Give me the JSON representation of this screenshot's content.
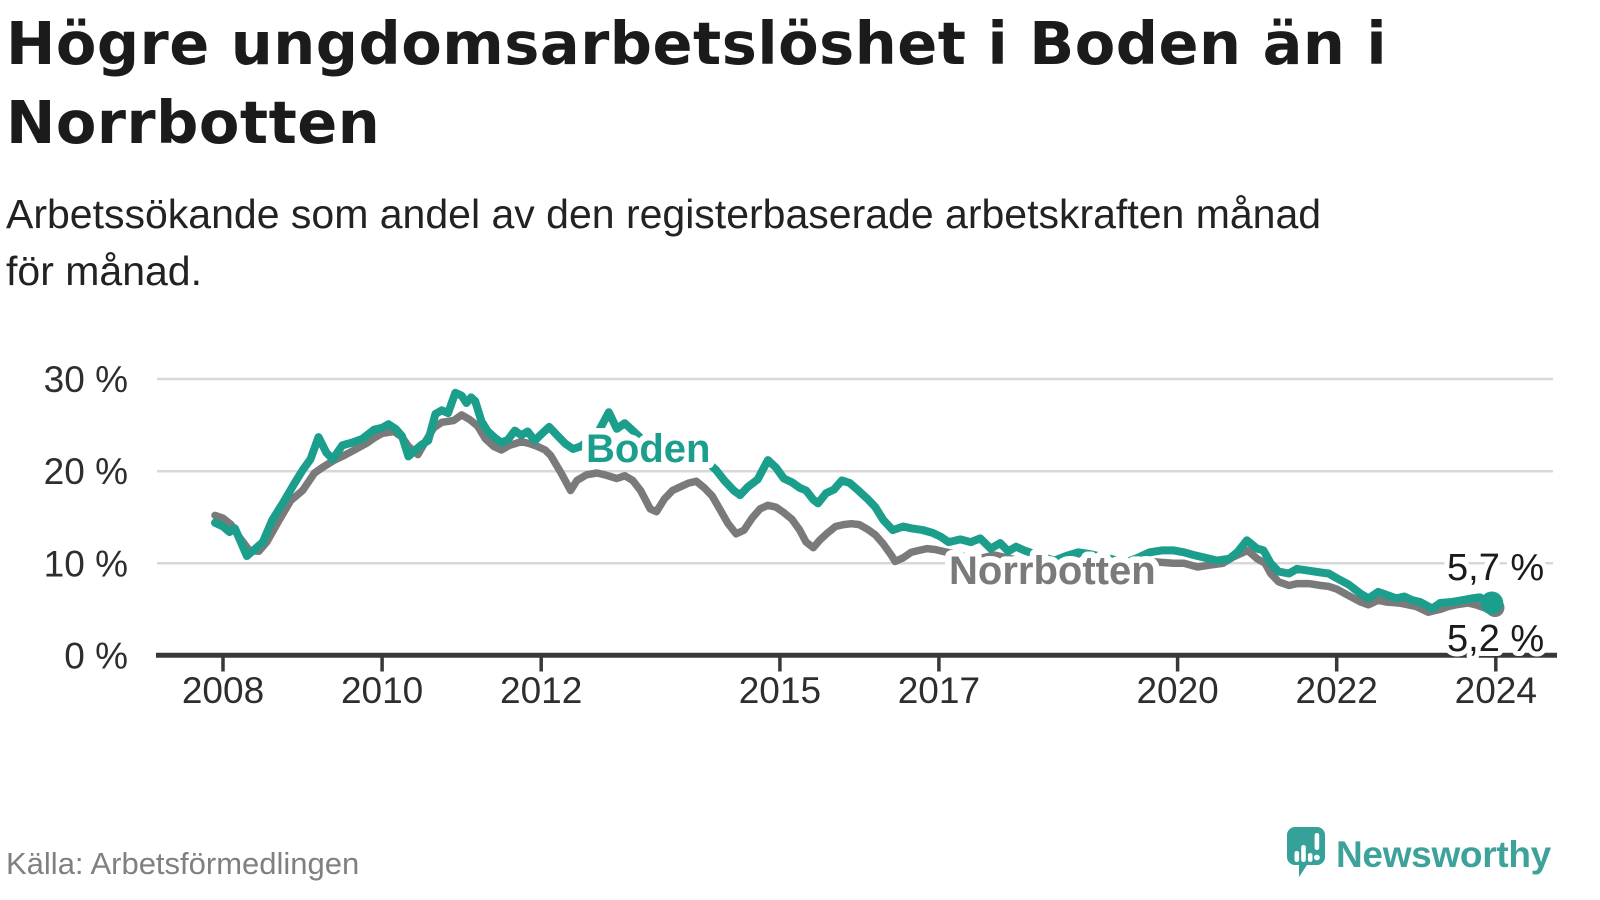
{
  "header": {
    "title_line1": "Högre ungdomsarbetslöshet i Boden än i",
    "title_line2": "Norrbotten",
    "subtitle_line1": "Arbetssökande som andel av den registerbaserade arbetskraften månad",
    "subtitle_line2": "för månad."
  },
  "footer": {
    "source": "Källa: Arbetsförmedlingen",
    "brand": "Newsworthy"
  },
  "chart_data": {
    "type": "line",
    "title": "",
    "xlabel": "",
    "ylabel": "Arbetssökande som andel av den registerbaserade arbetskraften",
    "unit": "%",
    "xlim": [
      2007.9,
      2024.4
    ],
    "ylim": [
      0,
      31
    ],
    "grid": "horizontal",
    "grid_color": "#d8d8d8",
    "axis_color": "#383838",
    "x_ticks": [
      {
        "value": 2008,
        "label": "2008"
      },
      {
        "value": 2010,
        "label": "2010"
      },
      {
        "value": 2012,
        "label": "2012"
      },
      {
        "value": 2015,
        "label": "2015"
      },
      {
        "value": 2017,
        "label": "2017"
      },
      {
        "value": 2020,
        "label": "2020"
      },
      {
        "value": 2022,
        "label": "2022"
      },
      {
        "value": 2024,
        "label": "2024"
      }
    ],
    "y_ticks": [
      {
        "value": 30,
        "label": "30 %"
      },
      {
        "value": 20,
        "label": "20 %"
      },
      {
        "value": 10,
        "label": "10 %"
      },
      {
        "value": 0,
        "label": "0 %"
      }
    ],
    "series": [
      {
        "name": "Boden",
        "color": "#1b9e8c",
        "end_label": "5,7 %",
        "last_value": 5.7,
        "points": [
          [
            2007.9,
            14.4
          ],
          [
            2008.0,
            14.0
          ],
          [
            2008.08,
            13.4
          ],
          [
            2008.15,
            13.8
          ],
          [
            2008.3,
            10.8
          ],
          [
            2008.42,
            11.7
          ],
          [
            2008.5,
            12.3
          ],
          [
            2008.62,
            14.7
          ],
          [
            2008.75,
            16.5
          ],
          [
            2008.9,
            18.7
          ],
          [
            2009.0,
            20.1
          ],
          [
            2009.1,
            21.3
          ],
          [
            2009.2,
            23.7
          ],
          [
            2009.3,
            22.0
          ],
          [
            2009.38,
            21.3
          ],
          [
            2009.5,
            22.8
          ],
          [
            2009.62,
            23.1
          ],
          [
            2009.75,
            23.5
          ],
          [
            2009.9,
            24.5
          ],
          [
            2010.0,
            24.7
          ],
          [
            2010.08,
            25.1
          ],
          [
            2010.17,
            24.6
          ],
          [
            2010.25,
            23.8
          ],
          [
            2010.33,
            21.6
          ],
          [
            2010.42,
            22.3
          ],
          [
            2010.5,
            22.9
          ],
          [
            2010.58,
            23.3
          ],
          [
            2010.67,
            26.2
          ],
          [
            2010.75,
            26.6
          ],
          [
            2010.83,
            26.3
          ],
          [
            2010.92,
            28.5
          ],
          [
            2011.0,
            28.2
          ],
          [
            2011.06,
            27.4
          ],
          [
            2011.12,
            28.0
          ],
          [
            2011.17,
            27.6
          ],
          [
            2011.25,
            25.4
          ],
          [
            2011.33,
            24.3
          ],
          [
            2011.42,
            23.6
          ],
          [
            2011.5,
            23.1
          ],
          [
            2011.58,
            23.4
          ],
          [
            2011.67,
            24.4
          ],
          [
            2011.75,
            23.9
          ],
          [
            2011.83,
            24.3
          ],
          [
            2011.92,
            23.3
          ],
          [
            2012.0,
            24.0
          ],
          [
            2012.1,
            24.8
          ],
          [
            2012.2,
            23.9
          ],
          [
            2012.3,
            23.0
          ],
          [
            2012.4,
            22.4
          ],
          [
            2012.5,
            22.7
          ],
          [
            2012.62,
            23.5
          ],
          [
            2012.72,
            24.3
          ],
          [
            2012.85,
            26.4
          ],
          [
            2012.95,
            24.6
          ],
          [
            2013.05,
            25.2
          ],
          [
            2013.15,
            24.4
          ],
          [
            2013.3,
            23.2
          ],
          [
            2013.45,
            21.9
          ],
          [
            2013.6,
            22.4
          ],
          [
            2013.75,
            22.9
          ],
          [
            2013.9,
            23.1
          ],
          [
            2014.0,
            22.2
          ],
          [
            2014.1,
            20.9
          ],
          [
            2014.2,
            20.1
          ],
          [
            2014.3,
            19.0
          ],
          [
            2014.42,
            17.9
          ],
          [
            2014.5,
            17.4
          ],
          [
            2014.6,
            18.3
          ],
          [
            2014.72,
            19.1
          ],
          [
            2014.85,
            21.2
          ],
          [
            2014.95,
            20.4
          ],
          [
            2015.05,
            19.2
          ],
          [
            2015.15,
            18.8
          ],
          [
            2015.25,
            18.2
          ],
          [
            2015.33,
            17.9
          ],
          [
            2015.42,
            16.9
          ],
          [
            2015.48,
            16.5
          ],
          [
            2015.58,
            17.6
          ],
          [
            2015.68,
            18.0
          ],
          [
            2015.78,
            19.0
          ],
          [
            2015.88,
            18.7
          ],
          [
            2016.0,
            17.8
          ],
          [
            2016.1,
            17.0
          ],
          [
            2016.2,
            16.1
          ],
          [
            2016.3,
            14.7
          ],
          [
            2016.42,
            13.6
          ],
          [
            2016.55,
            14.0
          ],
          [
            2016.65,
            13.8
          ],
          [
            2016.8,
            13.6
          ],
          [
            2016.92,
            13.3
          ],
          [
            2017.02,
            12.9
          ],
          [
            2017.12,
            12.3
          ],
          [
            2017.27,
            12.6
          ],
          [
            2017.4,
            12.3
          ],
          [
            2017.52,
            12.7
          ],
          [
            2017.65,
            11.6
          ],
          [
            2017.77,
            12.2
          ],
          [
            2017.87,
            11.3
          ],
          [
            2017.97,
            11.8
          ],
          [
            2018.07,
            11.4
          ],
          [
            2018.17,
            11.1
          ],
          [
            2018.3,
            10.7
          ],
          [
            2018.45,
            10.3
          ],
          [
            2018.6,
            10.8
          ],
          [
            2018.75,
            11.2
          ],
          [
            2018.9,
            11.0
          ],
          [
            2019.05,
            10.7
          ],
          [
            2019.2,
            10.4
          ],
          [
            2019.35,
            10.1
          ],
          [
            2019.5,
            10.6
          ],
          [
            2019.65,
            11.2
          ],
          [
            2019.8,
            11.4
          ],
          [
            2019.95,
            11.4
          ],
          [
            2020.08,
            11.2
          ],
          [
            2020.2,
            10.9
          ],
          [
            2020.35,
            10.6
          ],
          [
            2020.5,
            10.3
          ],
          [
            2020.65,
            10.5
          ],
          [
            2020.75,
            11.2
          ],
          [
            2020.87,
            12.5
          ],
          [
            2021.0,
            11.6
          ],
          [
            2021.08,
            11.4
          ],
          [
            2021.17,
            10.0
          ],
          [
            2021.27,
            9.1
          ],
          [
            2021.4,
            8.9
          ],
          [
            2021.5,
            9.4
          ],
          [
            2021.65,
            9.2
          ],
          [
            2021.8,
            9.0
          ],
          [
            2021.9,
            8.9
          ],
          [
            2022.0,
            8.4
          ],
          [
            2022.15,
            7.7
          ],
          [
            2022.3,
            6.7
          ],
          [
            2022.4,
            6.2
          ],
          [
            2022.52,
            6.9
          ],
          [
            2022.62,
            6.6
          ],
          [
            2022.75,
            6.2
          ],
          [
            2022.85,
            6.4
          ],
          [
            2022.95,
            6.0
          ],
          [
            2023.05,
            5.8
          ],
          [
            2023.2,
            5.1
          ],
          [
            2023.3,
            5.7
          ],
          [
            2023.45,
            5.8
          ],
          [
            2023.58,
            6.0
          ],
          [
            2023.7,
            6.2
          ],
          [
            2023.8,
            6.3
          ],
          [
            2023.88,
            5.9
          ],
          [
            2023.95,
            5.7
          ]
        ]
      },
      {
        "name": "Norrbotten",
        "color": "#7a7a7a",
        "end_label": "5,2 %",
        "last_value": 5.2,
        "points": [
          [
            2007.9,
            15.2
          ],
          [
            2008.0,
            14.9
          ],
          [
            2008.1,
            14.2
          ],
          [
            2008.2,
            12.9
          ],
          [
            2008.33,
            11.4
          ],
          [
            2008.45,
            11.3
          ],
          [
            2008.55,
            12.3
          ],
          [
            2008.7,
            14.6
          ],
          [
            2008.85,
            16.8
          ],
          [
            2009.0,
            17.9
          ],
          [
            2009.15,
            19.8
          ],
          [
            2009.25,
            20.4
          ],
          [
            2009.4,
            21.2
          ],
          [
            2009.5,
            21.6
          ],
          [
            2009.65,
            22.3
          ],
          [
            2009.8,
            23.0
          ],
          [
            2009.9,
            23.6
          ],
          [
            2010.0,
            24.1
          ],
          [
            2010.15,
            24.3
          ],
          [
            2010.25,
            23.7
          ],
          [
            2010.33,
            22.7
          ],
          [
            2010.45,
            21.8
          ],
          [
            2010.55,
            23.3
          ],
          [
            2010.65,
            24.7
          ],
          [
            2010.75,
            25.3
          ],
          [
            2010.9,
            25.5
          ],
          [
            2011.0,
            26.1
          ],
          [
            2011.1,
            25.6
          ],
          [
            2011.2,
            24.9
          ],
          [
            2011.3,
            23.5
          ],
          [
            2011.4,
            22.7
          ],
          [
            2011.5,
            22.3
          ],
          [
            2011.6,
            22.8
          ],
          [
            2011.75,
            23.2
          ],
          [
            2011.85,
            23.0
          ],
          [
            2011.95,
            22.7
          ],
          [
            2012.05,
            22.3
          ],
          [
            2012.12,
            21.7
          ],
          [
            2012.25,
            19.8
          ],
          [
            2012.37,
            17.9
          ],
          [
            2012.45,
            19.0
          ],
          [
            2012.57,
            19.6
          ],
          [
            2012.7,
            19.8
          ],
          [
            2012.8,
            19.6
          ],
          [
            2012.95,
            19.2
          ],
          [
            2013.05,
            19.5
          ],
          [
            2013.15,
            19.0
          ],
          [
            2013.25,
            17.9
          ],
          [
            2013.37,
            15.9
          ],
          [
            2013.45,
            15.6
          ],
          [
            2013.55,
            17.0
          ],
          [
            2013.65,
            17.9
          ],
          [
            2013.75,
            18.3
          ],
          [
            2013.85,
            18.7
          ],
          [
            2013.95,
            18.9
          ],
          [
            2014.05,
            18.2
          ],
          [
            2014.15,
            17.3
          ],
          [
            2014.25,
            15.8
          ],
          [
            2014.35,
            14.3
          ],
          [
            2014.45,
            13.2
          ],
          [
            2014.55,
            13.6
          ],
          [
            2014.65,
            14.9
          ],
          [
            2014.75,
            15.9
          ],
          [
            2014.85,
            16.3
          ],
          [
            2014.95,
            16.1
          ],
          [
            2015.05,
            15.5
          ],
          [
            2015.15,
            14.8
          ],
          [
            2015.25,
            13.6
          ],
          [
            2015.33,
            12.3
          ],
          [
            2015.42,
            11.7
          ],
          [
            2015.5,
            12.5
          ],
          [
            2015.6,
            13.3
          ],
          [
            2015.7,
            14.0
          ],
          [
            2015.8,
            14.2
          ],
          [
            2015.9,
            14.3
          ],
          [
            2016.0,
            14.2
          ],
          [
            2016.1,
            13.7
          ],
          [
            2016.2,
            13.1
          ],
          [
            2016.3,
            12.1
          ],
          [
            2016.4,
            10.9
          ],
          [
            2016.45,
            10.2
          ],
          [
            2016.55,
            10.6
          ],
          [
            2016.65,
            11.2
          ],
          [
            2016.75,
            11.4
          ],
          [
            2016.85,
            11.6
          ],
          [
            2016.95,
            11.5
          ],
          [
            2017.05,
            11.3
          ],
          [
            2017.15,
            11.1
          ],
          [
            2017.3,
            10.8
          ],
          [
            2017.45,
            10.3
          ],
          [
            2017.55,
            10.6
          ],
          [
            2017.7,
            10.9
          ],
          [
            2017.85,
            10.6
          ],
          [
            2018.0,
            10.3
          ],
          [
            2018.15,
            10.0
          ],
          [
            2018.3,
            9.6
          ],
          [
            2018.45,
            9.9
          ],
          [
            2018.6,
            10.2
          ],
          [
            2018.75,
            10.4
          ],
          [
            2018.9,
            10.2
          ],
          [
            2019.05,
            9.9
          ],
          [
            2019.2,
            9.6
          ],
          [
            2019.35,
            9.8
          ],
          [
            2019.5,
            10.0
          ],
          [
            2019.65,
            10.2
          ],
          [
            2019.8,
            10.1
          ],
          [
            2019.95,
            10.0
          ],
          [
            2020.08,
            10.0
          ],
          [
            2020.25,
            9.6
          ],
          [
            2020.4,
            9.8
          ],
          [
            2020.57,
            10.0
          ],
          [
            2020.7,
            10.7
          ],
          [
            2020.88,
            11.4
          ],
          [
            2021.0,
            10.5
          ],
          [
            2021.1,
            10.0
          ],
          [
            2021.17,
            8.9
          ],
          [
            2021.27,
            8.0
          ],
          [
            2021.4,
            7.6
          ],
          [
            2021.5,
            7.8
          ],
          [
            2021.65,
            7.8
          ],
          [
            2021.8,
            7.6
          ],
          [
            2021.9,
            7.5
          ],
          [
            2022.0,
            7.2
          ],
          [
            2022.15,
            6.5
          ],
          [
            2022.3,
            5.8
          ],
          [
            2022.4,
            5.5
          ],
          [
            2022.52,
            6.0
          ],
          [
            2022.62,
            5.8
          ],
          [
            2022.78,
            5.7
          ],
          [
            2022.9,
            5.5
          ],
          [
            2023.0,
            5.3
          ],
          [
            2023.15,
            4.7
          ],
          [
            2023.3,
            5.0
          ],
          [
            2023.4,
            5.3
          ],
          [
            2023.5,
            5.5
          ],
          [
            2023.65,
            5.7
          ],
          [
            2023.75,
            5.5
          ],
          [
            2023.88,
            5.1
          ],
          [
            2023.99,
            5.2
          ]
        ]
      }
    ]
  }
}
